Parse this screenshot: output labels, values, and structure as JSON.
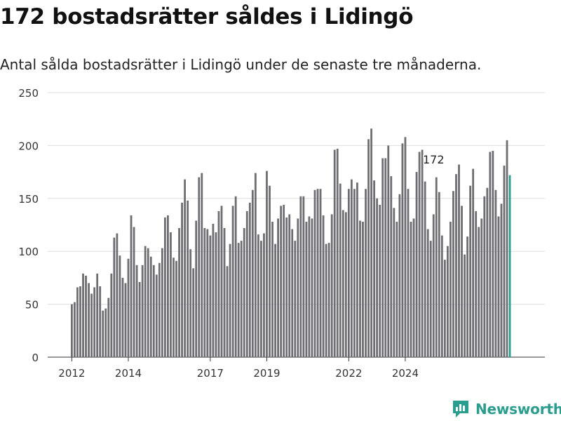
{
  "title": "172 bostadsrätter såldes i Lidingö",
  "subtitle": "Antal sålda bostadsrätter i Lidingö under de senaste tre månaderna.",
  "brand": {
    "name": "Newsworthy",
    "color": "#2a9d8f"
  },
  "colors": {
    "bar": "#6e6d72",
    "highlight": "#2a9d8f",
    "grid": "#dddddd"
  },
  "chart_data": {
    "type": "bar",
    "xlabel": "",
    "ylabel": "",
    "ylim": [
      0,
      250
    ],
    "y_ticks": [
      0,
      50,
      100,
      150,
      200,
      250
    ],
    "x_ticks": [
      "2012",
      "2014",
      "2017",
      "2019",
      "2022",
      "2024"
    ],
    "x_tick_index": [
      0,
      20,
      49,
      69,
      98,
      118
    ],
    "annotation": {
      "index": 128,
      "text": "172"
    },
    "values": [
      50,
      52,
      66,
      67,
      79,
      77,
      70,
      60,
      66,
      79,
      67,
      44,
      46,
      56,
      79,
      113,
      117,
      96,
      75,
      70,
      93,
      134,
      123,
      87,
      71,
      87,
      105,
      103,
      95,
      87,
      78,
      89,
      103,
      132,
      134,
      118,
      94,
      91,
      122,
      146,
      168,
      148,
      102,
      84,
      129,
      170,
      174,
      122,
      121,
      115,
      126,
      118,
      138,
      143,
      122,
      86,
      107,
      143,
      152,
      108,
      110,
      122,
      138,
      146,
      158,
      174,
      116,
      110,
      117,
      176,
      162,
      128,
      107,
      131,
      143,
      144,
      132,
      135,
      121,
      110,
      131,
      152,
      152,
      128,
      133,
      131,
      158,
      159,
      159,
      134,
      107,
      108,
      135,
      196,
      197,
      164,
      139,
      137,
      159,
      168,
      159,
      165,
      129,
      128,
      159,
      206,
      216,
      167,
      150,
      144,
      188,
      188,
      200,
      171,
      141,
      128,
      154,
      202,
      208,
      159,
      128,
      131,
      175,
      194,
      196,
      166,
      121,
      110,
      135,
      170,
      156,
      115,
      92,
      105,
      128,
      157,
      173,
      182,
      143,
      97,
      114,
      162,
      178,
      138,
      123,
      131,
      152,
      160,
      194,
      195,
      158,
      133,
      145,
      181,
      205,
      172
    ]
  }
}
